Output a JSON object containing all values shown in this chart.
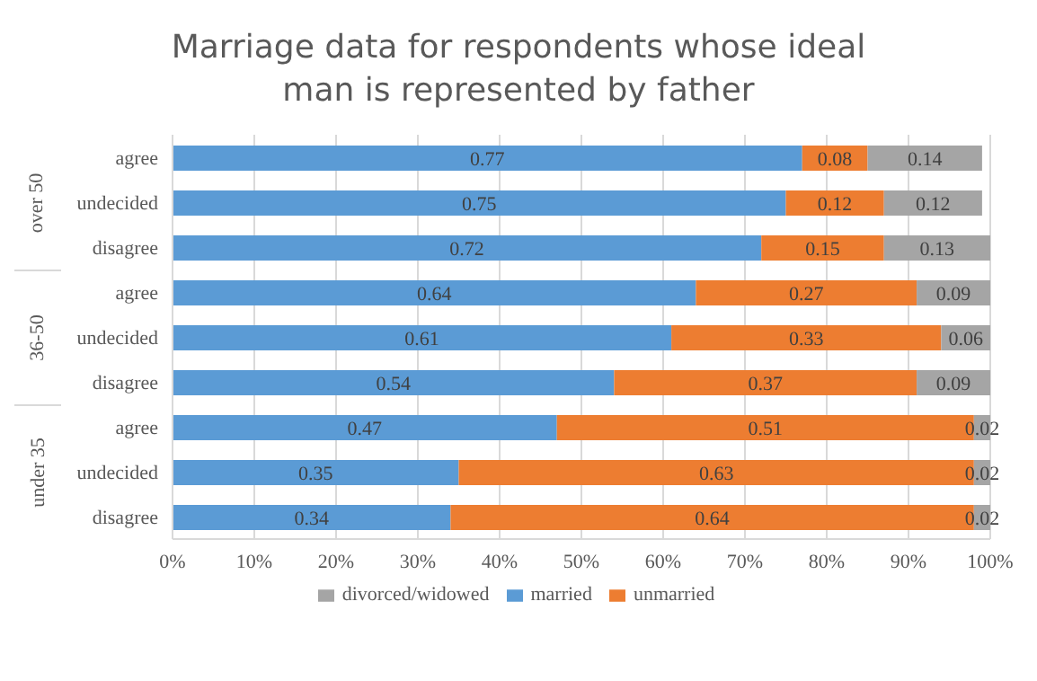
{
  "chart_data": {
    "type": "bar",
    "orientation": "horizontal",
    "stacked": true,
    "title": "Marriage data for respondents whose ideal man is represented by father",
    "categories": [
      "agree",
      "undecided",
      "disagree",
      "agree",
      "undecided",
      "disagree",
      "agree",
      "undecided",
      "disagree"
    ],
    "annotations": [
      "over 50",
      "36-50",
      "under 35"
    ],
    "series": [
      {
        "name": "married",
        "color": "#5b9bd5",
        "values": [
          0.77,
          0.75,
          0.72,
          0.64,
          0.61,
          0.54,
          0.47,
          0.35,
          0.34
        ]
      },
      {
        "name": "unmarried",
        "color": "#ed7d31",
        "values": [
          0.08,
          0.12,
          0.15,
          0.27,
          0.33,
          0.37,
          0.51,
          0.63,
          0.64
        ]
      },
      {
        "name": "divorced/widowed",
        "color": "#a5a5a5",
        "values": [
          0.14,
          0.12,
          0.13,
          0.09,
          0.06,
          0.09,
          0.02,
          0.02,
          0.02
        ]
      }
    ],
    "xlim": [
      0,
      1
    ],
    "xticks": [
      {
        "value": 0,
        "label": "0%"
      },
      {
        "value": 0.1,
        "label": "10%"
      },
      {
        "value": 0.2,
        "label": "20%"
      },
      {
        "value": 0.3,
        "label": "30%"
      },
      {
        "value": 0.4,
        "label": "40%"
      },
      {
        "value": 0.5,
        "label": "50%"
      },
      {
        "value": 0.6,
        "label": "60%"
      },
      {
        "value": 0.7,
        "label": "70%"
      },
      {
        "value": 0.8,
        "label": "80%"
      },
      {
        "value": 0.9,
        "label": "90%"
      },
      {
        "value": 1,
        "label": "100%"
      }
    ],
    "grid": "x",
    "legend": "bottom",
    "data_labels": true
  }
}
